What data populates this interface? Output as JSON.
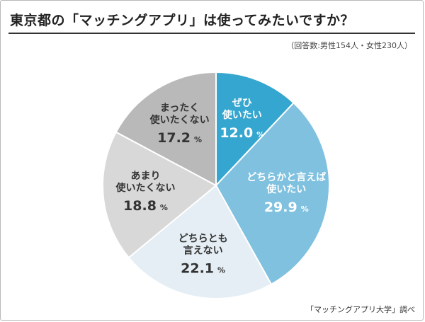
{
  "title": "東京都の「マッチングアプリ」は使ってみたいですか？",
  "note": "（回答数:男性154人・女性230人）",
  "source": "「マッチングアプリ大学」調べ",
  "chart_data": {
    "type": "pie",
    "unit": "%",
    "slices": [
      {
        "label_lines": [
          "ぜひ",
          "使いたい"
        ],
        "value": 12.0,
        "color": "#35a6cf",
        "text_color": "#ffffff"
      },
      {
        "label_lines": [
          "どちらかと言えば",
          "使いたい"
        ],
        "value": 29.9,
        "color": "#7fc1df",
        "text_color": "#ffffff"
      },
      {
        "label_lines": [
          "どちらとも",
          "言えない"
        ],
        "value": 22.1,
        "color": "#e4eef4",
        "text_color": "#333333"
      },
      {
        "label_lines": [
          "あまり",
          "使いたくない"
        ],
        "value": 18.8,
        "color": "#d8d8d8",
        "text_color": "#333333"
      },
      {
        "label_lines": [
          "まったく",
          "使いたくない"
        ],
        "value": 17.2,
        "color": "#b9b9b9",
        "text_color": "#333333"
      }
    ]
  }
}
